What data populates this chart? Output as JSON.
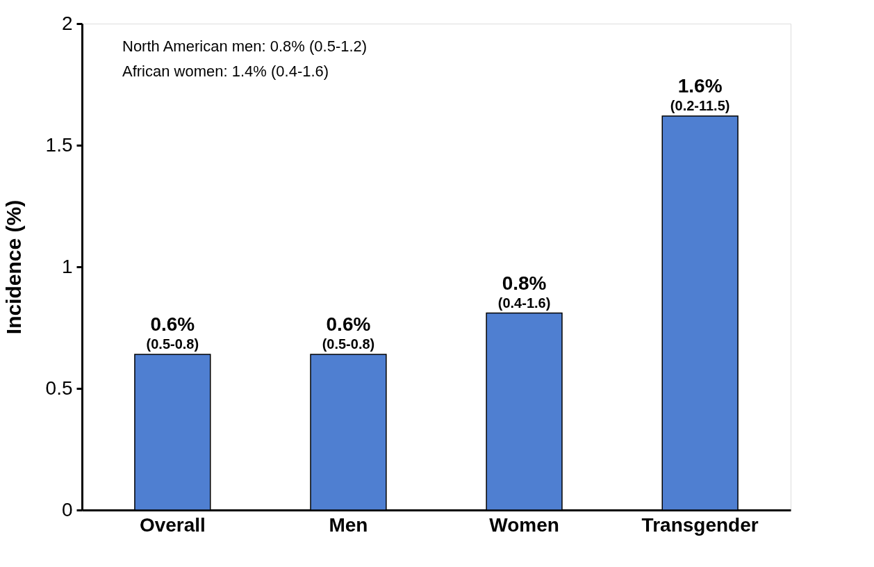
{
  "chart_data": {
    "type": "bar",
    "ylabel": "Incidence (%)",
    "categories": [
      "Overall",
      "Men",
      "Women",
      "Transgender"
    ],
    "values": [
      0.64,
      0.64,
      0.81,
      1.62
    ],
    "color": "#4f7fd1",
    "value_labels": [
      "0.6%",
      "0.6%",
      "0.8%",
      "1.6%"
    ],
    "ylim": [
      0,
      2
    ],
    "yticks": [
      0,
      0.5,
      1,
      1.5,
      2
    ],
    "grid": false,
    "annotations": [
      "North American men: 0.8% (0.5-1.2)",
      "African women: 1.4% (0.4-1.6)",
      {
        "text": "(0.5-0.8)",
        "x": "Overall",
        "y": 0.64
      },
      {
        "text": "(0.5-0.8)",
        "x": "Men",
        "y": 0.64
      },
      {
        "text": "(0.4-1.6)",
        "x": "Women",
        "y": 0.81
      },
      {
        "text": "(0.2-11.5)",
        "x": "Transgender",
        "y": 1.62
      }
    ]
  }
}
